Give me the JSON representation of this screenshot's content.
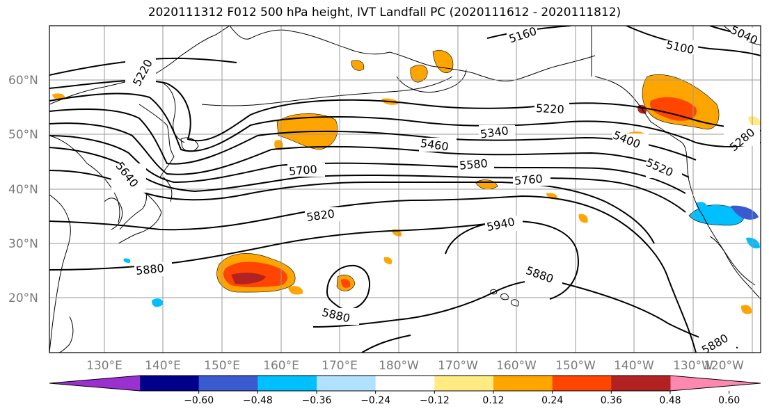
{
  "title": "2020111312 F012 500 hPa height, IVT Landfall PC (2020111612 - 2020111812)",
  "lat_labels": [
    "60°N",
    "50°N",
    "40°N",
    "30°N",
    "20°N"
  ],
  "lon_labels": [
    "130°E",
    "140°E",
    "150°E",
    "160°E",
    "170°E",
    "180°W",
    "170°W",
    "160°W",
    "150°W",
    "140°W",
    "130°W",
    "120°W"
  ],
  "colorbar": {
    "ticks": [
      "−0.60",
      "−0.48",
      "−0.36",
      "−0.24",
      "−0.12",
      "0.12",
      "0.24",
      "0.36",
      "0.48",
      "0.60"
    ],
    "colors": [
      "#9b30d0",
      "#00008b",
      "#3a5bcf",
      "#00bfff",
      "#b0e2ff",
      "#ffffff",
      "#ffeb82",
      "#ffa500",
      "#ff4500",
      "#b22222",
      "#ff88b0"
    ]
  },
  "contour_labels": [
    "5160",
    "5100",
    "5040",
    "5220",
    "5220",
    "5340",
    "5460",
    "5400",
    "5580",
    "5520",
    "5280",
    "5640",
    "5700",
    "5760",
    "5820",
    "5940",
    "5880",
    "5880",
    "5880",
    "5880"
  ],
  "contour_color": "#000000",
  "grid": true
}
